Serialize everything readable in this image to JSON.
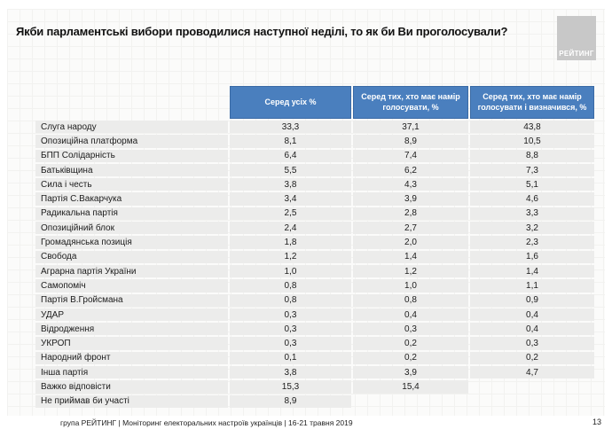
{
  "title": "Якби парламентські вибори проводилися наступної неділі, то як би Ви проголосували?",
  "logo": {
    "text": "РЕЙТИНГ"
  },
  "footer": {
    "source": "група РЕЙТИНГ | Моніторинг електоральних настроїв українців | 16-21 травня  2019",
    "page": "13"
  },
  "colors": {
    "header_bg": "#4a7fbe",
    "header_border": "#3a6aa5",
    "row_bg": "#ececeb",
    "logo_bg": "#c8c8c8"
  },
  "chart_data": {
    "type": "table",
    "title": "Якби парламентські вибори проводилися наступної неділі, то як би Ви проголосували?",
    "columns": [
      "Серед усіх %",
      "Серед тих, хто має намір голосувати, %",
      "Серед тих, хто має намір голосувати і визначився, %"
    ],
    "rows": [
      {
        "label": "Слуга народу",
        "values": [
          "33,3",
          "37,1",
          "43,8"
        ]
      },
      {
        "label": "Опозиційна платформа",
        "values": [
          "8,1",
          "8,9",
          "10,5"
        ]
      },
      {
        "label": "БПП Солідарність",
        "values": [
          "6,4",
          "7,4",
          "8,8"
        ]
      },
      {
        "label": "Батьківщина",
        "values": [
          "5,5",
          "6,2",
          "7,3"
        ]
      },
      {
        "label": "Сила і честь",
        "values": [
          "3,8",
          "4,3",
          "5,1"
        ]
      },
      {
        "label": "Партія С.Вакарчука",
        "values": [
          "3,4",
          "3,9",
          "4,6"
        ]
      },
      {
        "label": "Радикальна партія",
        "values": [
          "2,5",
          "2,8",
          "3,3"
        ]
      },
      {
        "label": "Опозиційний блок",
        "values": [
          "2,4",
          "2,7",
          "3,2"
        ]
      },
      {
        "label": "Громадянська позиція",
        "values": [
          "1,8",
          "2,0",
          "2,3"
        ]
      },
      {
        "label": "Свобода",
        "values": [
          "1,2",
          "1,4",
          "1,6"
        ]
      },
      {
        "label": "Аграрна партія України",
        "values": [
          "1,0",
          "1,2",
          "1,4"
        ]
      },
      {
        "label": "Самопоміч",
        "values": [
          "0,8",
          "1,0",
          "1,1"
        ]
      },
      {
        "label": "Партія В.Гройсмана",
        "values": [
          "0,8",
          "0,8",
          "0,9"
        ]
      },
      {
        "label": "УДАР",
        "values": [
          "0,3",
          "0,4",
          "0,4"
        ]
      },
      {
        "label": "Відродження",
        "values": [
          "0,3",
          "0,3",
          "0,4"
        ]
      },
      {
        "label": "УКРОП",
        "values": [
          "0,3",
          "0,2",
          "0,3"
        ]
      },
      {
        "label": "Народний фронт",
        "values": [
          "0,1",
          "0,2",
          "0,2"
        ]
      },
      {
        "label": "Інша партія",
        "values": [
          "3,8",
          "3,9",
          "4,7"
        ]
      },
      {
        "label": "Важко відповісти",
        "values": [
          "15,3",
          "15,4",
          ""
        ]
      },
      {
        "label": "Не приймав би участі",
        "values": [
          "8,9",
          "",
          ""
        ]
      }
    ]
  }
}
